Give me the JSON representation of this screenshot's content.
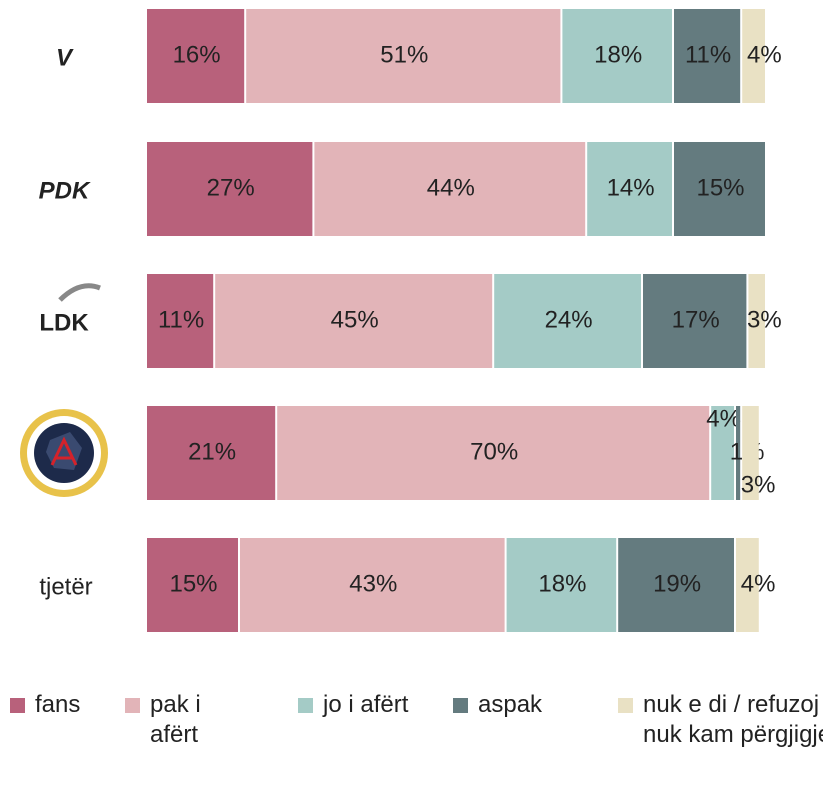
{
  "chart_data": {
    "type": "stacked-bar-horizontal",
    "categories": [
      "V",
      "PDK",
      "LDK",
      null,
      "tjetër"
    ],
    "xlim": [
      0,
      100
    ],
    "series": [
      {
        "name": "fans",
        "color": "#b8617b",
        "values": [
          16,
          27,
          11,
          21,
          15
        ],
        "value_labels": [
          "16%",
          "27%",
          "11%",
          "21%",
          "15%"
        ]
      },
      {
        "name": "pak i afërt",
        "color": "#e2b4b8",
        "values": [
          51,
          44,
          45,
          70,
          43
        ],
        "value_labels": [
          "51%",
          "44%",
          "45%",
          "70%",
          "43%"
        ]
      },
      {
        "name": "jo i afërt",
        "color": "#a4cbc6",
        "values": [
          18,
          14,
          24,
          4,
          18
        ],
        "value_labels": [
          "18%",
          "14%",
          "24%",
          "4%",
          "18%"
        ]
      },
      {
        "name": "aspak",
        "color": "#647b7f",
        "values": [
          11,
          15,
          17,
          1,
          19
        ],
        "value_labels": [
          "11%",
          "15%",
          "17%",
          "1%",
          "19%"
        ]
      },
      {
        "name": "nuk e di / refuzoj / nuk kam përgjigje",
        "color": "#e9e1c4",
        "values": [
          4,
          null,
          3,
          3,
          4
        ],
        "value_labels": [
          "4%",
          null,
          "3%",
          "3%",
          "4%"
        ]
      }
    ]
  }
}
